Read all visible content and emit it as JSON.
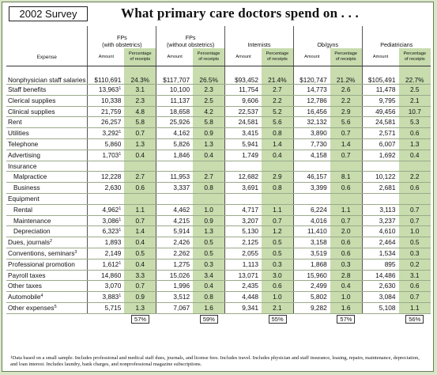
{
  "survey_label": "2002 Survey",
  "title": "What primary care doctors spend on . . .",
  "expense_header": "Expense",
  "amount_header": "Amount",
  "pct_header_l1": "Percentage",
  "pct_header_l2": "of receipts",
  "groups": [
    {
      "l1": "FPs",
      "l2": "(with obstetrics)"
    },
    {
      "l1": "FPs",
      "l2": "(without obstetrics)"
    },
    {
      "l1": "Internists",
      "l2": ""
    },
    {
      "l1": "Ob/gyns",
      "l2": ""
    },
    {
      "l1": "Pediatricians",
      "l2": ""
    }
  ],
  "rows": [
    {
      "label": "Nonphysician staff salaries",
      "vals": [
        "$110,691",
        "24.3%",
        "$117,707",
        "26.5%",
        "$93,452",
        "21.4%",
        "$120,747",
        "21.2%",
        "$105,491",
        "22.7%"
      ],
      "tall": true
    },
    {
      "label": "Staff benefits",
      "vals": [
        "13,963",
        "3.1",
        "10,100",
        "2.3",
        "11,754",
        "2.7",
        "14,773",
        "2.6",
        "11,478",
        "2.5"
      ],
      "sup": "1"
    },
    {
      "label": "Clerical supplies",
      "vals": [
        "10,338",
        "2.3",
        "11,137",
        "2.5",
        "9,606",
        "2.2",
        "12,786",
        "2.2",
        "9,795",
        "2.1"
      ]
    },
    {
      "label": "Clinical supplies",
      "vals": [
        "21,759",
        "4.8",
        "18,658",
        "4.2",
        "22,537",
        "5.2",
        "16,456",
        "2.9",
        "49,456",
        "10.7"
      ]
    },
    {
      "label": "Rent",
      "vals": [
        "26,257",
        "5.8",
        "25,926",
        "5.8",
        "24,581",
        "5.6",
        "32,132",
        "5.6",
        "24,581",
        "5.3"
      ]
    },
    {
      "label": "Utilities",
      "vals": [
        "3,292",
        "0.7",
        "4,162",
        "0.9",
        "3,415",
        "0.8",
        "3,890",
        "0.7",
        "2,571",
        "0.6"
      ],
      "sup": "1"
    },
    {
      "label": "Telephone",
      "vals": [
        "5,860",
        "1.3",
        "5,826",
        "1.3",
        "5,941",
        "1.4",
        "7,730",
        "1.4",
        "6,007",
        "1.3"
      ]
    },
    {
      "label": "Advertising",
      "vals": [
        "1,703",
        "0.4",
        "1,846",
        "0.4",
        "1,749",
        "0.4",
        "4,158",
        "0.7",
        "1,692",
        "0.4"
      ],
      "sup": "1"
    },
    {
      "label": "Insurance",
      "section": true,
      "vals": [
        "",
        "",
        "",
        "",
        "",
        "",
        "",
        "",
        "",
        ""
      ]
    },
    {
      "label": "Malpractice",
      "sub": true,
      "vals": [
        "12,228",
        "2.7",
        "11,953",
        "2.7",
        "12,682",
        "2.9",
        "46,157",
        "8.1",
        "10,122",
        "2.2"
      ]
    },
    {
      "label": "Business",
      "sub": true,
      "vals": [
        "2,630",
        "0.6",
        "3,337",
        "0.8",
        "3,691",
        "0.8",
        "3,399",
        "0.6",
        "2,681",
        "0.6"
      ]
    },
    {
      "label": "Equipment",
      "section": true,
      "vals": [
        "",
        "",
        "",
        "",
        "",
        "",
        "",
        "",
        "",
        ""
      ]
    },
    {
      "label": "Rental",
      "sub": true,
      "vals": [
        "4,962",
        "1.1",
        "4,462",
        "1.0",
        "4,717",
        "1.1",
        "6,224",
        "1.1",
        "3,113",
        "0.7"
      ],
      "sup": "1"
    },
    {
      "label": "Maintenance",
      "sub": true,
      "vals": [
        "3,086",
        "0.7",
        "4,215",
        "0.9",
        "3,207",
        "0.7",
        "4,016",
        "0.7",
        "3,237",
        "0.7"
      ],
      "sup": "1"
    },
    {
      "label": "Depreciation",
      "sub": true,
      "vals": [
        "6,323",
        "1.4",
        "5,914",
        "1.3",
        "5,130",
        "1.2",
        "11,410",
        "2.0",
        "4,610",
        "1.0"
      ],
      "sup": "1"
    },
    {
      "label": "Dues, journals",
      "labelsup": "2",
      "vals": [
        "1,893",
        "0.4",
        "2,426",
        "0.5",
        "2,125",
        "0.5",
        "3,158",
        "0.6",
        "2,464",
        "0.5"
      ]
    },
    {
      "label": "Conventions, seminars",
      "labelsup": "3",
      "vals": [
        "2,149",
        "0.5",
        "2,262",
        "0.5",
        "2,055",
        "0.5",
        "3,519",
        "0.6",
        "1,534",
        "0.3"
      ]
    },
    {
      "label": "Professional promotion",
      "vals": [
        "1,612",
        "0.4",
        "1,275",
        "0.3",
        "1,113",
        "0.3",
        "1,868",
        "0.3",
        "895",
        "0.2"
      ],
      "sup": "1"
    },
    {
      "label": "Payroll taxes",
      "vals": [
        "14,860",
        "3.3",
        "15,026",
        "3.4",
        "13,071",
        "3.0",
        "15,960",
        "2.8",
        "14,486",
        "3.1"
      ]
    },
    {
      "label": "Other taxes",
      "vals": [
        "3,070",
        "0.7",
        "1,996",
        "0.4",
        "2,435",
        "0.6",
        "2,499",
        "0.4",
        "2,630",
        "0.6"
      ]
    },
    {
      "label": "Automobile",
      "labelsup": "4",
      "vals": [
        "3,883",
        "0.9",
        "3,512",
        "0.8",
        "4,448",
        "1.0",
        "5,802",
        "1.0",
        "3,084",
        "0.7"
      ],
      "sup": "1"
    },
    {
      "label": "Other expenses",
      "labelsup": "5",
      "vals": [
        "5,715",
        "1.3",
        "7,067",
        "1.6",
        "9,341",
        "2.1",
        "9,282",
        "1.6",
        "5,108",
        "1.1"
      ]
    }
  ],
  "totals": [
    "57%",
    "59%",
    "55%",
    "57%",
    "56%"
  ],
  "footnote": "Data based on a small sample.  Includes professional and medical staff dues, journals, and license fees.  Includes travel.  Includes physician and staff insurance, leasing, repairs, maintenance, depreciation, and loan interest.  Includes laundry, bank charges, and nonprofessional magazine subscriptions.",
  "colors": {
    "pct_shade": "#c8dcae",
    "background": "#d9e6c8"
  }
}
